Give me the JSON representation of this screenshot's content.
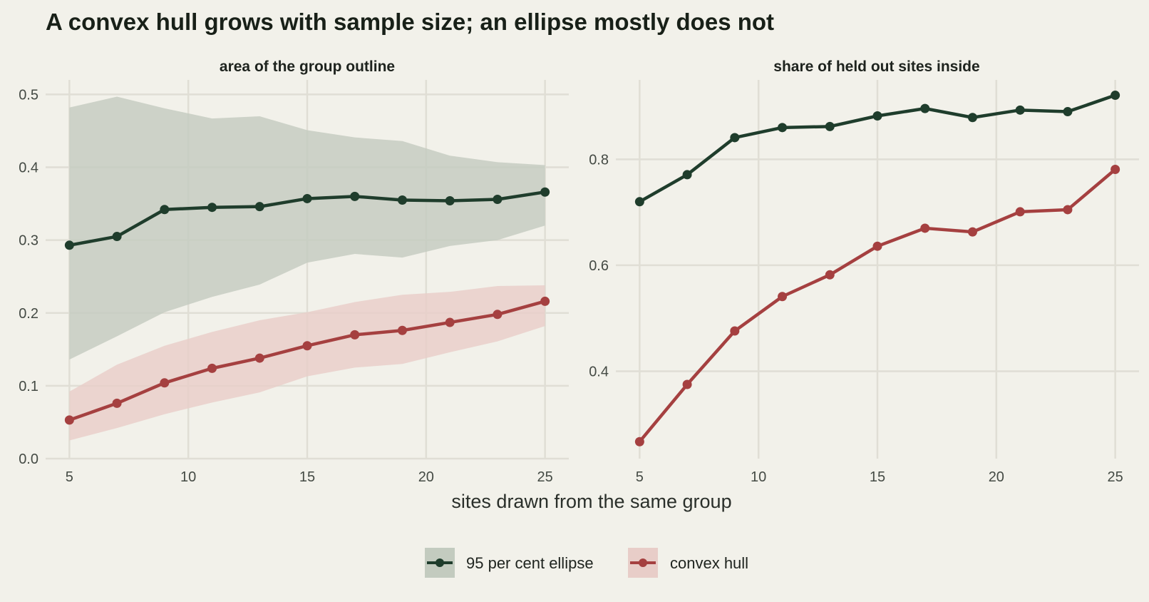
{
  "title": "A convex hull grows with sample size; an ellipse mostly does not",
  "xlabel": "sites drawn from the same group",
  "colors": {
    "ellipse": "#1f3d2c",
    "hull": "#a54040",
    "ellipse_band": "#c3cbbf",
    "hull_band": "#e8cdc8",
    "background": "#f2f1ea",
    "grid": "#e0ded5"
  },
  "legend": {
    "items": [
      {
        "key": "ellipse",
        "label": "95 per cent ellipse"
      },
      {
        "key": "hull",
        "label": "convex hull"
      }
    ],
    "position": "bottom"
  },
  "chart_data": [
    {
      "type": "line",
      "title": "area of the group outline",
      "x": [
        5,
        7,
        9,
        11,
        13,
        15,
        17,
        19,
        21,
        23,
        25
      ],
      "xlim": [
        4,
        26
      ],
      "xticks": [
        5,
        10,
        15,
        20,
        25
      ],
      "ylim": [
        0,
        0.52
      ],
      "yticks": [
        "0.0",
        "0.1",
        "0.2",
        "0.3",
        "0.4",
        "0.5"
      ],
      "grid": true,
      "series": [
        {
          "key": "ellipse",
          "name": "95 per cent ellipse",
          "values": [
            0.293,
            0.305,
            0.342,
            0.345,
            0.346,
            0.357,
            0.36,
            0.355,
            0.354,
            0.356,
            0.366
          ],
          "band_low": [
            0.136,
            0.168,
            0.201,
            0.222,
            0.239,
            0.269,
            0.281,
            0.276,
            0.292,
            0.3,
            0.32
          ],
          "band_high": [
            0.482,
            0.497,
            0.481,
            0.467,
            0.47,
            0.451,
            0.441,
            0.436,
            0.416,
            0.407,
            0.403
          ]
        },
        {
          "key": "hull",
          "name": "convex hull",
          "values": [
            0.053,
            0.076,
            0.104,
            0.124,
            0.138,
            0.155,
            0.17,
            0.176,
            0.187,
            0.198,
            0.216
          ],
          "band_low": [
            0.025,
            0.042,
            0.061,
            0.077,
            0.091,
            0.113,
            0.125,
            0.13,
            0.146,
            0.161,
            0.182
          ],
          "band_high": [
            0.092,
            0.129,
            0.155,
            0.174,
            0.19,
            0.201,
            0.215,
            0.225,
            0.229,
            0.237,
            0.238
          ]
        }
      ]
    },
    {
      "type": "line",
      "title": "share of held out sites inside",
      "x": [
        5,
        7,
        9,
        11,
        13,
        15,
        17,
        19,
        21,
        23,
        25
      ],
      "xlim": [
        4,
        26
      ],
      "xticks": [
        5,
        10,
        15,
        20,
        25
      ],
      "ylim": [
        0.235,
        0.95
      ],
      "yticks": [
        "0.4",
        "0.6",
        "0.8"
      ],
      "grid": true,
      "series": [
        {
          "key": "ellipse",
          "name": "95 per cent ellipse",
          "values": [
            0.72,
            0.771,
            0.841,
            0.86,
            0.862,
            0.882,
            0.896,
            0.879,
            0.893,
            0.89,
            0.921
          ]
        },
        {
          "key": "hull",
          "name": "convex hull",
          "values": [
            0.267,
            0.375,
            0.476,
            0.541,
            0.582,
            0.636,
            0.67,
            0.663,
            0.701,
            0.705,
            0.781
          ]
        }
      ]
    }
  ]
}
